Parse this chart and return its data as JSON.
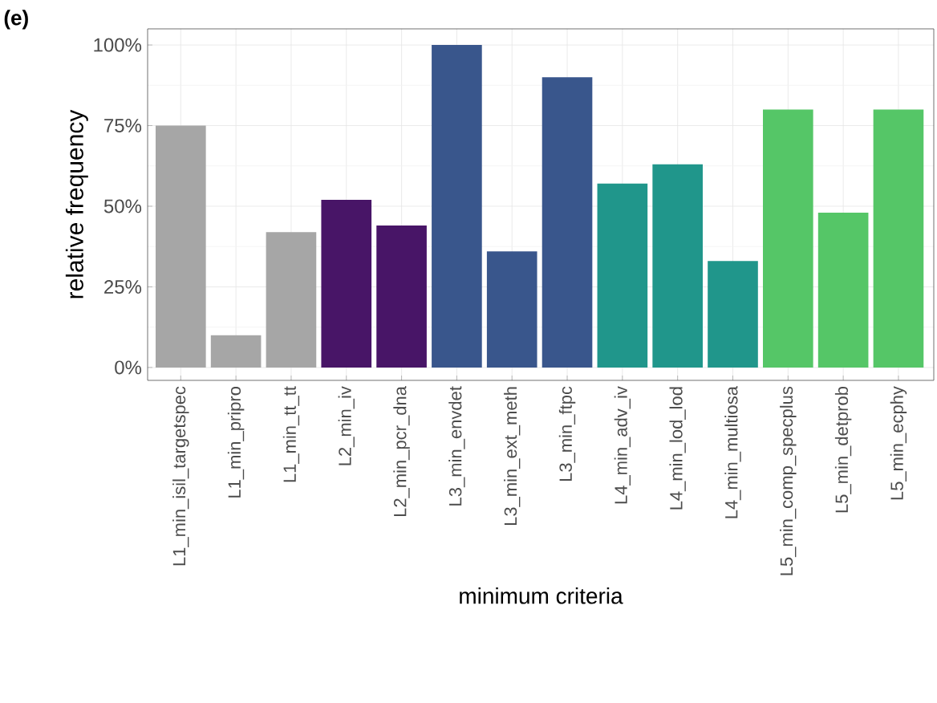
{
  "chart_data": {
    "type": "bar",
    "title": "(e)",
    "xlabel": "minimum criteria",
    "ylabel": "relative frequency",
    "categories": [
      "L1_min_isil_targetspec",
      "L1_min_pripro",
      "L1_min_tt_tt",
      "L2_min_iv",
      "L2_min_pcr_dna",
      "L3_min_envdet",
      "L3_min_ext_meth",
      "L3_min_ftpc",
      "L4_min_adv_iv",
      "L4_min_lod_lod",
      "L4_min_multiosa",
      "L5_min_comp_specplus",
      "L5_min_detprob",
      "L5_min_ecphy"
    ],
    "values": [
      75,
      10,
      42,
      52,
      44,
      100,
      36,
      90,
      57,
      63,
      33,
      80,
      48,
      80
    ],
    "colors": [
      "#a6a6a6",
      "#a6a6a6",
      "#a6a6a6",
      "#481567",
      "#481567",
      "#39568c",
      "#39568c",
      "#39568c",
      "#20968b",
      "#20968b",
      "#20968b",
      "#55c667",
      "#55c667",
      "#55c667"
    ],
    "ylim": [
      -4,
      105
    ],
    "yticks": [
      {
        "value": 0,
        "label": "0%"
      },
      {
        "value": 25,
        "label": "25%"
      },
      {
        "value": 50,
        "label": "50%"
      },
      {
        "value": 75,
        "label": "75%"
      },
      {
        "value": 100,
        "label": "100%"
      }
    ],
    "grid": true
  }
}
